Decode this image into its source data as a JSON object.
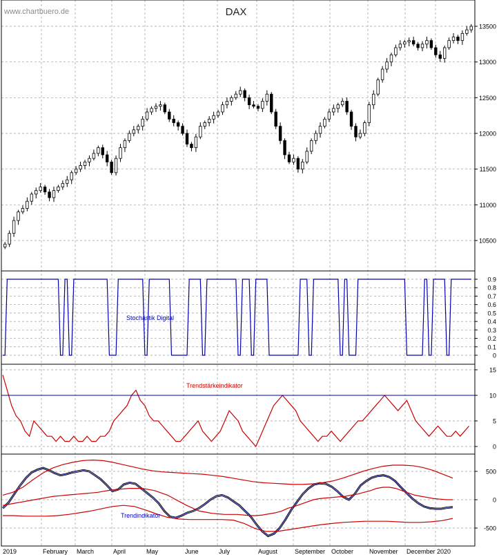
{
  "watermark": "www.chartbuero.de",
  "chart_data": {
    "type": "line",
    "title": "DAX",
    "x_labels": [
      "2019",
      "February",
      "March",
      "April",
      "May",
      "June",
      "July",
      "August",
      "September",
      "October",
      "November",
      "December",
      "2020"
    ],
    "panels": [
      {
        "name": "price",
        "type": "candlestick",
        "series_name": "DAX",
        "yticks": [
          10500,
          11000,
          11500,
          12000,
          12500,
          13000,
          13500
        ],
        "ylim": [
          10200,
          13700
        ],
        "grid": true,
        "closes": [
          10450,
          10600,
          10780,
          10900,
          10950,
          11050,
          11150,
          11200,
          11250,
          11180,
          11100,
          11200,
          11250,
          11300,
          11350,
          11450,
          11500,
          11550,
          11600,
          11650,
          11720,
          11800,
          11700,
          11600,
          11450,
          11650,
          11800,
          11900,
          12000,
          12050,
          12100,
          12200,
          12300,
          12350,
          12380,
          12400,
          12300,
          12200,
          12150,
          12100,
          12000,
          11850,
          11800,
          11950,
          12100,
          12150,
          12200,
          12250,
          12300,
          12400,
          12450,
          12500,
          12550,
          12600,
          12500,
          12400,
          12380,
          12350,
          12450,
          12550,
          12300,
          12100,
          11900,
          11700,
          11600,
          11650,
          11500,
          11600,
          11750,
          11900,
          12000,
          12100,
          12200,
          12300,
          12350,
          12400,
          12450,
          12300,
          12100,
          11950,
          12000,
          12150,
          12400,
          12550,
          12750,
          12900,
          13000,
          13100,
          13200,
          13250,
          13280,
          13300,
          13250,
          13200,
          13250,
          13300,
          13200,
          13100,
          13050,
          13200,
          13300,
          13350,
          13300,
          13400,
          13450,
          13500
        ]
      },
      {
        "name": "stochastic",
        "label": "Stochastik Digital",
        "yticks": [
          0.0,
          0.1,
          0.2,
          0.3,
          0.4,
          0.5,
          0.6,
          0.7,
          0.8,
          0.9
        ],
        "ylim": [
          0,
          1
        ],
        "color": "#0000aa",
        "values": [
          0.1,
          1,
          1,
          1,
          1,
          1,
          1,
          1,
          1,
          1,
          1,
          1,
          1,
          0.1,
          1,
          0.1,
          1,
          1,
          1,
          1,
          1,
          1,
          1,
          1,
          0.1,
          0.1,
          1,
          1,
          1,
          1,
          1,
          1,
          0.1,
          1,
          1,
          1,
          1,
          1,
          0.1,
          0.1,
          0.1,
          0.1,
          1,
          1,
          1,
          0.1,
          1,
          1,
          1,
          1,
          1,
          1,
          1,
          0.1,
          1,
          1,
          0.1,
          1,
          1,
          1,
          0.1,
          0.1,
          0.1,
          0.1,
          0.1,
          0.1,
          0.1,
          1,
          1,
          0.1,
          1,
          1,
          1,
          1,
          1,
          1,
          0.1,
          1,
          0.1,
          0.1,
          1,
          1,
          1,
          1,
          1,
          1,
          1,
          1,
          1,
          1,
          1,
          0.1,
          0.1,
          0.1,
          0.1,
          1,
          0.1,
          1,
          1,
          1,
          0.1,
          1,
          1,
          1,
          1,
          1
        ]
      },
      {
        "name": "trend_strength",
        "label": "Trendstärkeindikator",
        "yticks": [
          0,
          5,
          10,
          15
        ],
        "ylim": [
          -1,
          16
        ],
        "reference_line": 10,
        "color": "#cc0000",
        "values": [
          14,
          11,
          8,
          6,
          5,
          3,
          2,
          5,
          4,
          3,
          2,
          2,
          1,
          2,
          1,
          1,
          2,
          1,
          1,
          2,
          1,
          1,
          2,
          2,
          3,
          5,
          6,
          7,
          8,
          10,
          11,
          9,
          8,
          6,
          5,
          5,
          4,
          3,
          2,
          1,
          1,
          2,
          3,
          4,
          5,
          3,
          2,
          1,
          2,
          3,
          5,
          7,
          6,
          5,
          3,
          2,
          1,
          0,
          2,
          4,
          6,
          8,
          9,
          10,
          9,
          8,
          7,
          5,
          4,
          3,
          2,
          1,
          2,
          2,
          3,
          2,
          1,
          2,
          3,
          4,
          5,
          5,
          6,
          7,
          8,
          9,
          10,
          9,
          8,
          7,
          8,
          9,
          7,
          5,
          4,
          3,
          2,
          3,
          4,
          3,
          2,
          2,
          3,
          2,
          3,
          4
        ]
      },
      {
        "name": "trend",
        "label": "Trendindikator",
        "yticks": [
          -500,
          0,
          500
        ],
        "ylim": [
          -700,
          800
        ],
        "series": [
          {
            "color": "#0000cc",
            "values": [
              -150,
              -50,
              100,
              250,
              380,
              480,
              530,
              560,
              520,
              470,
              430,
              450,
              480,
              500,
              520,
              500,
              430,
              360,
              260,
              150,
              180,
              270,
              300,
              280,
              200,
              120,
              40,
              -60,
              -200,
              -300,
              -320,
              -280,
              -230,
              -200,
              -150,
              -80,
              0,
              60,
              80,
              40,
              -30,
              -100,
              -200,
              -300,
              -440,
              -560,
              -640,
              -600,
              -500,
              -350,
              -180,
              -40,
              100,
              200,
              270,
              290,
              280,
              230,
              150,
              50,
              0,
              100,
              250,
              330,
              390,
              420,
              430,
              400,
              330,
              220,
              120,
              20,
              -60,
              -120,
              -150,
              -160,
              -160,
              -140,
              -130
            ]
          },
          {
            "color": "#cc0000",
            "values": [
              -100,
              -80,
              -60,
              -40,
              -20,
              0,
              20,
              40,
              60,
              70,
              80,
              90,
              100,
              110,
              120,
              130,
              150,
              170,
              180,
              190,
              200,
              200,
              200,
              180,
              160,
              120,
              80,
              20,
              -40,
              -100,
              -150,
              -200,
              -220,
              -240,
              -250,
              -260,
              -260,
              -260,
              -270,
              -280,
              -280,
              -270,
              -250,
              -230,
              -200,
              -150,
              -120,
              -80,
              -40,
              0,
              20,
              30,
              40,
              50,
              60,
              80,
              100,
              130,
              160,
              200,
              220,
              220,
              200,
              160,
              120,
              80,
              60,
              40,
              20,
              10,
              0,
              0
            ]
          },
          {
            "color": "#cc0000",
            "values": [
              80,
              130,
              220,
              350,
              470,
              560,
              620,
              660,
              690,
              700,
              690,
              660,
              620,
              580,
              540,
              510,
              490,
              480,
              470,
              460,
              450,
              430,
              410,
              380,
              350,
              320,
              300,
              290,
              280,
              270,
              270,
              280,
              300,
              330,
              380,
              440,
              500,
              550,
              590,
              610,
              610,
              600,
              570,
              520,
              450,
              380
            ]
          },
          {
            "color": "#cc0000",
            "values": [
              -280,
              -280,
              -290,
              -290,
              -290,
              -280,
              -260,
              -230,
              -200,
              -160,
              -120,
              -100,
              -120,
              -180,
              -250,
              -310,
              -340,
              -350,
              -350,
              -350,
              -350,
              -360,
              -420,
              -510,
              -560,
              -560,
              -530,
              -500,
              -470,
              -440,
              -420,
              -400,
              -390,
              -380,
              -380,
              -380,
              -390,
              -400,
              -400,
              -390,
              -370,
              -330
            ]
          }
        ]
      }
    ]
  },
  "layout": {
    "slots": 106
  }
}
